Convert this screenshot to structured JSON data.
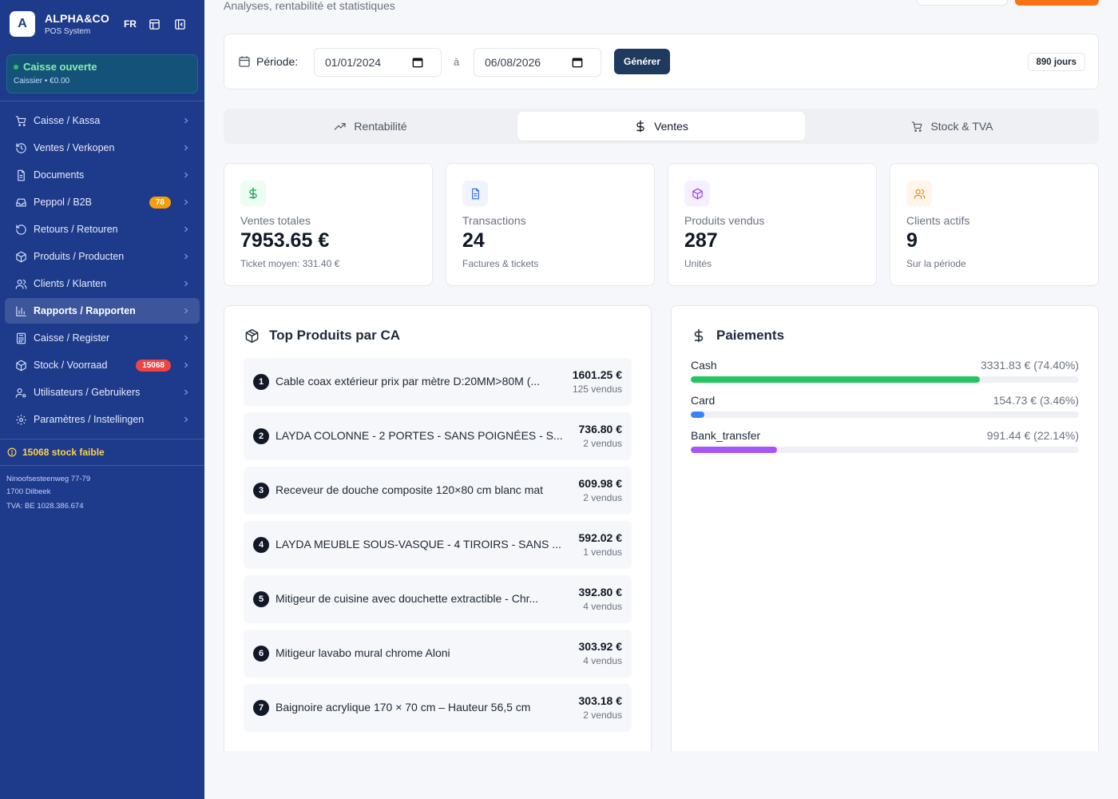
{
  "sidebar": {
    "logo_letter": "A",
    "brand": "ALPHA&CO",
    "brand_sub": "POS System",
    "lang": "FR",
    "status_title": "Caisse ouverte",
    "status_sub": "Caissier • €0.00",
    "items": [
      {
        "name": "nav-caisse-kassa",
        "icon": "cart-icon",
        "label": "Caisse / Kassa",
        "badge": "",
        "active": false
      },
      {
        "name": "nav-ventes-verkopen",
        "icon": "history-icon",
        "label": "Ventes / Verkopen",
        "badge": "",
        "active": false
      },
      {
        "name": "nav-documents",
        "icon": "document-icon",
        "label": "Documents",
        "badge": "",
        "active": false
      },
      {
        "name": "nav-peppol-b2b",
        "icon": "inbox-icon",
        "label": "Peppol / B2B",
        "badge": "78",
        "badge_color": "amber",
        "active": false
      },
      {
        "name": "nav-retours-retouren",
        "icon": "return-icon",
        "label": "Retours / Retouren",
        "badge": "",
        "active": false
      },
      {
        "name": "nav-produits-producten",
        "icon": "box-icon",
        "label": "Produits / Producten",
        "badge": "",
        "active": false
      },
      {
        "name": "nav-clients-klanten",
        "icon": "users-icon",
        "label": "Clients / Klanten",
        "badge": "",
        "active": false
      },
      {
        "name": "nav-rapports-rapporten",
        "icon": "bar-chart-icon",
        "label": "Rapports / Rapporten",
        "badge": "",
        "active": true
      },
      {
        "name": "nav-caisse-register",
        "icon": "calculator-icon",
        "label": "Caisse / Register",
        "badge": "",
        "active": false
      },
      {
        "name": "nav-stock-voorraad",
        "icon": "box-icon",
        "label": "Stock / Voorraad",
        "badge": "15068",
        "badge_color": "red",
        "active": false
      },
      {
        "name": "nav-utilisateurs-gebruikers",
        "icon": "user-cog-icon",
        "label": "Utilisateurs / Gebruikers",
        "badge": "",
        "active": false
      },
      {
        "name": "nav-parametres-instellingen",
        "icon": "gear-icon",
        "label": "Paramètres / Instellingen",
        "badge": "",
        "active": false
      }
    ],
    "low_stock": "15068 stock faible",
    "address_line1": "Ninoofsesteenweg 77-79",
    "address_line2": "1700 Dilbeek",
    "vat": "TVA: BE 1028.386.674"
  },
  "header": {
    "subtitle": "Analyses, rentabilité et statistiques"
  },
  "period": {
    "label": "Période:",
    "from": "01/01/2024",
    "separator": "à",
    "to": "06/08/2026",
    "generate": "Générer",
    "days": "890 jours"
  },
  "tabs": [
    {
      "label": "Rentabilité",
      "icon": "trending-up-icon",
      "active": false
    },
    {
      "label": "Ventes",
      "icon": "dollar-icon",
      "active": true
    },
    {
      "label": "Stock & TVA",
      "icon": "cart-icon",
      "active": false
    }
  ],
  "kpis": [
    {
      "label": "Ventes totales",
      "value": "7953.65 €",
      "sub": "Ticket moyen: 331.40 €",
      "icon": "dollar-icon",
      "color": "#16a34a",
      "bg": "#ecfdf3"
    },
    {
      "label": "Transactions",
      "value": "24",
      "sub": "Factures & tickets",
      "icon": "document-icon",
      "color": "#2563eb",
      "bg": "#eff4ff"
    },
    {
      "label": "Produits vendus",
      "value": "287",
      "sub": "Unités",
      "icon": "box-icon",
      "color": "#9333ea",
      "bg": "#f5efff"
    },
    {
      "label": "Clients actifs",
      "value": "9",
      "sub": "Sur la période",
      "icon": "users-icon",
      "color": "#ea7a0c",
      "bg": "#fff5e8"
    }
  ],
  "top_products": {
    "title": "Top Produits par CA",
    "items": [
      {
        "rank": "1",
        "name": "Cable coax extérieur prix par mètre D:20MM>80M (...",
        "amount": "1601.25 €",
        "qty": "125 vendus"
      },
      {
        "rank": "2",
        "name": "LAYDA COLONNE - 2 PORTES - SANS POIGNÉES - S...",
        "amount": "736.80 €",
        "qty": "2 vendus"
      },
      {
        "rank": "3",
        "name": "Receveur de douche composite 120×80 cm blanc mat",
        "amount": "609.98 €",
        "qty": "2 vendus"
      },
      {
        "rank": "4",
        "name": "LAYDA MEUBLE SOUS-VASQUE - 4 TIROIRS - SANS ...",
        "amount": "592.02 €",
        "qty": "1 vendus"
      },
      {
        "rank": "5",
        "name": "Mitigeur de cuisine avec douchette extractible - Chr...",
        "amount": "392.80 €",
        "qty": "4 vendus"
      },
      {
        "rank": "6",
        "name": "Mitigeur lavabo mural chrome Aloni",
        "amount": "303.92 €",
        "qty": "4 vendus"
      },
      {
        "rank": "7",
        "name": "Baignoire acrylique 170 × 70 cm – Hauteur 56,5 cm",
        "amount": "303.18 €",
        "qty": "2 vendus"
      }
    ]
  },
  "payments": {
    "title": "Paiements",
    "items": [
      {
        "name": "Cash",
        "value": "3331.83 € (74.40%)",
        "percent": 74.4,
        "color": "#22c55e"
      },
      {
        "name": "Card",
        "value": "154.73 € (3.46%)",
        "percent": 3.46,
        "color": "#3b82f6"
      },
      {
        "name": "Bank_transfer",
        "value": "991.44 € (22.14%)",
        "percent": 22.14,
        "color": "#a855f7"
      }
    ]
  }
}
